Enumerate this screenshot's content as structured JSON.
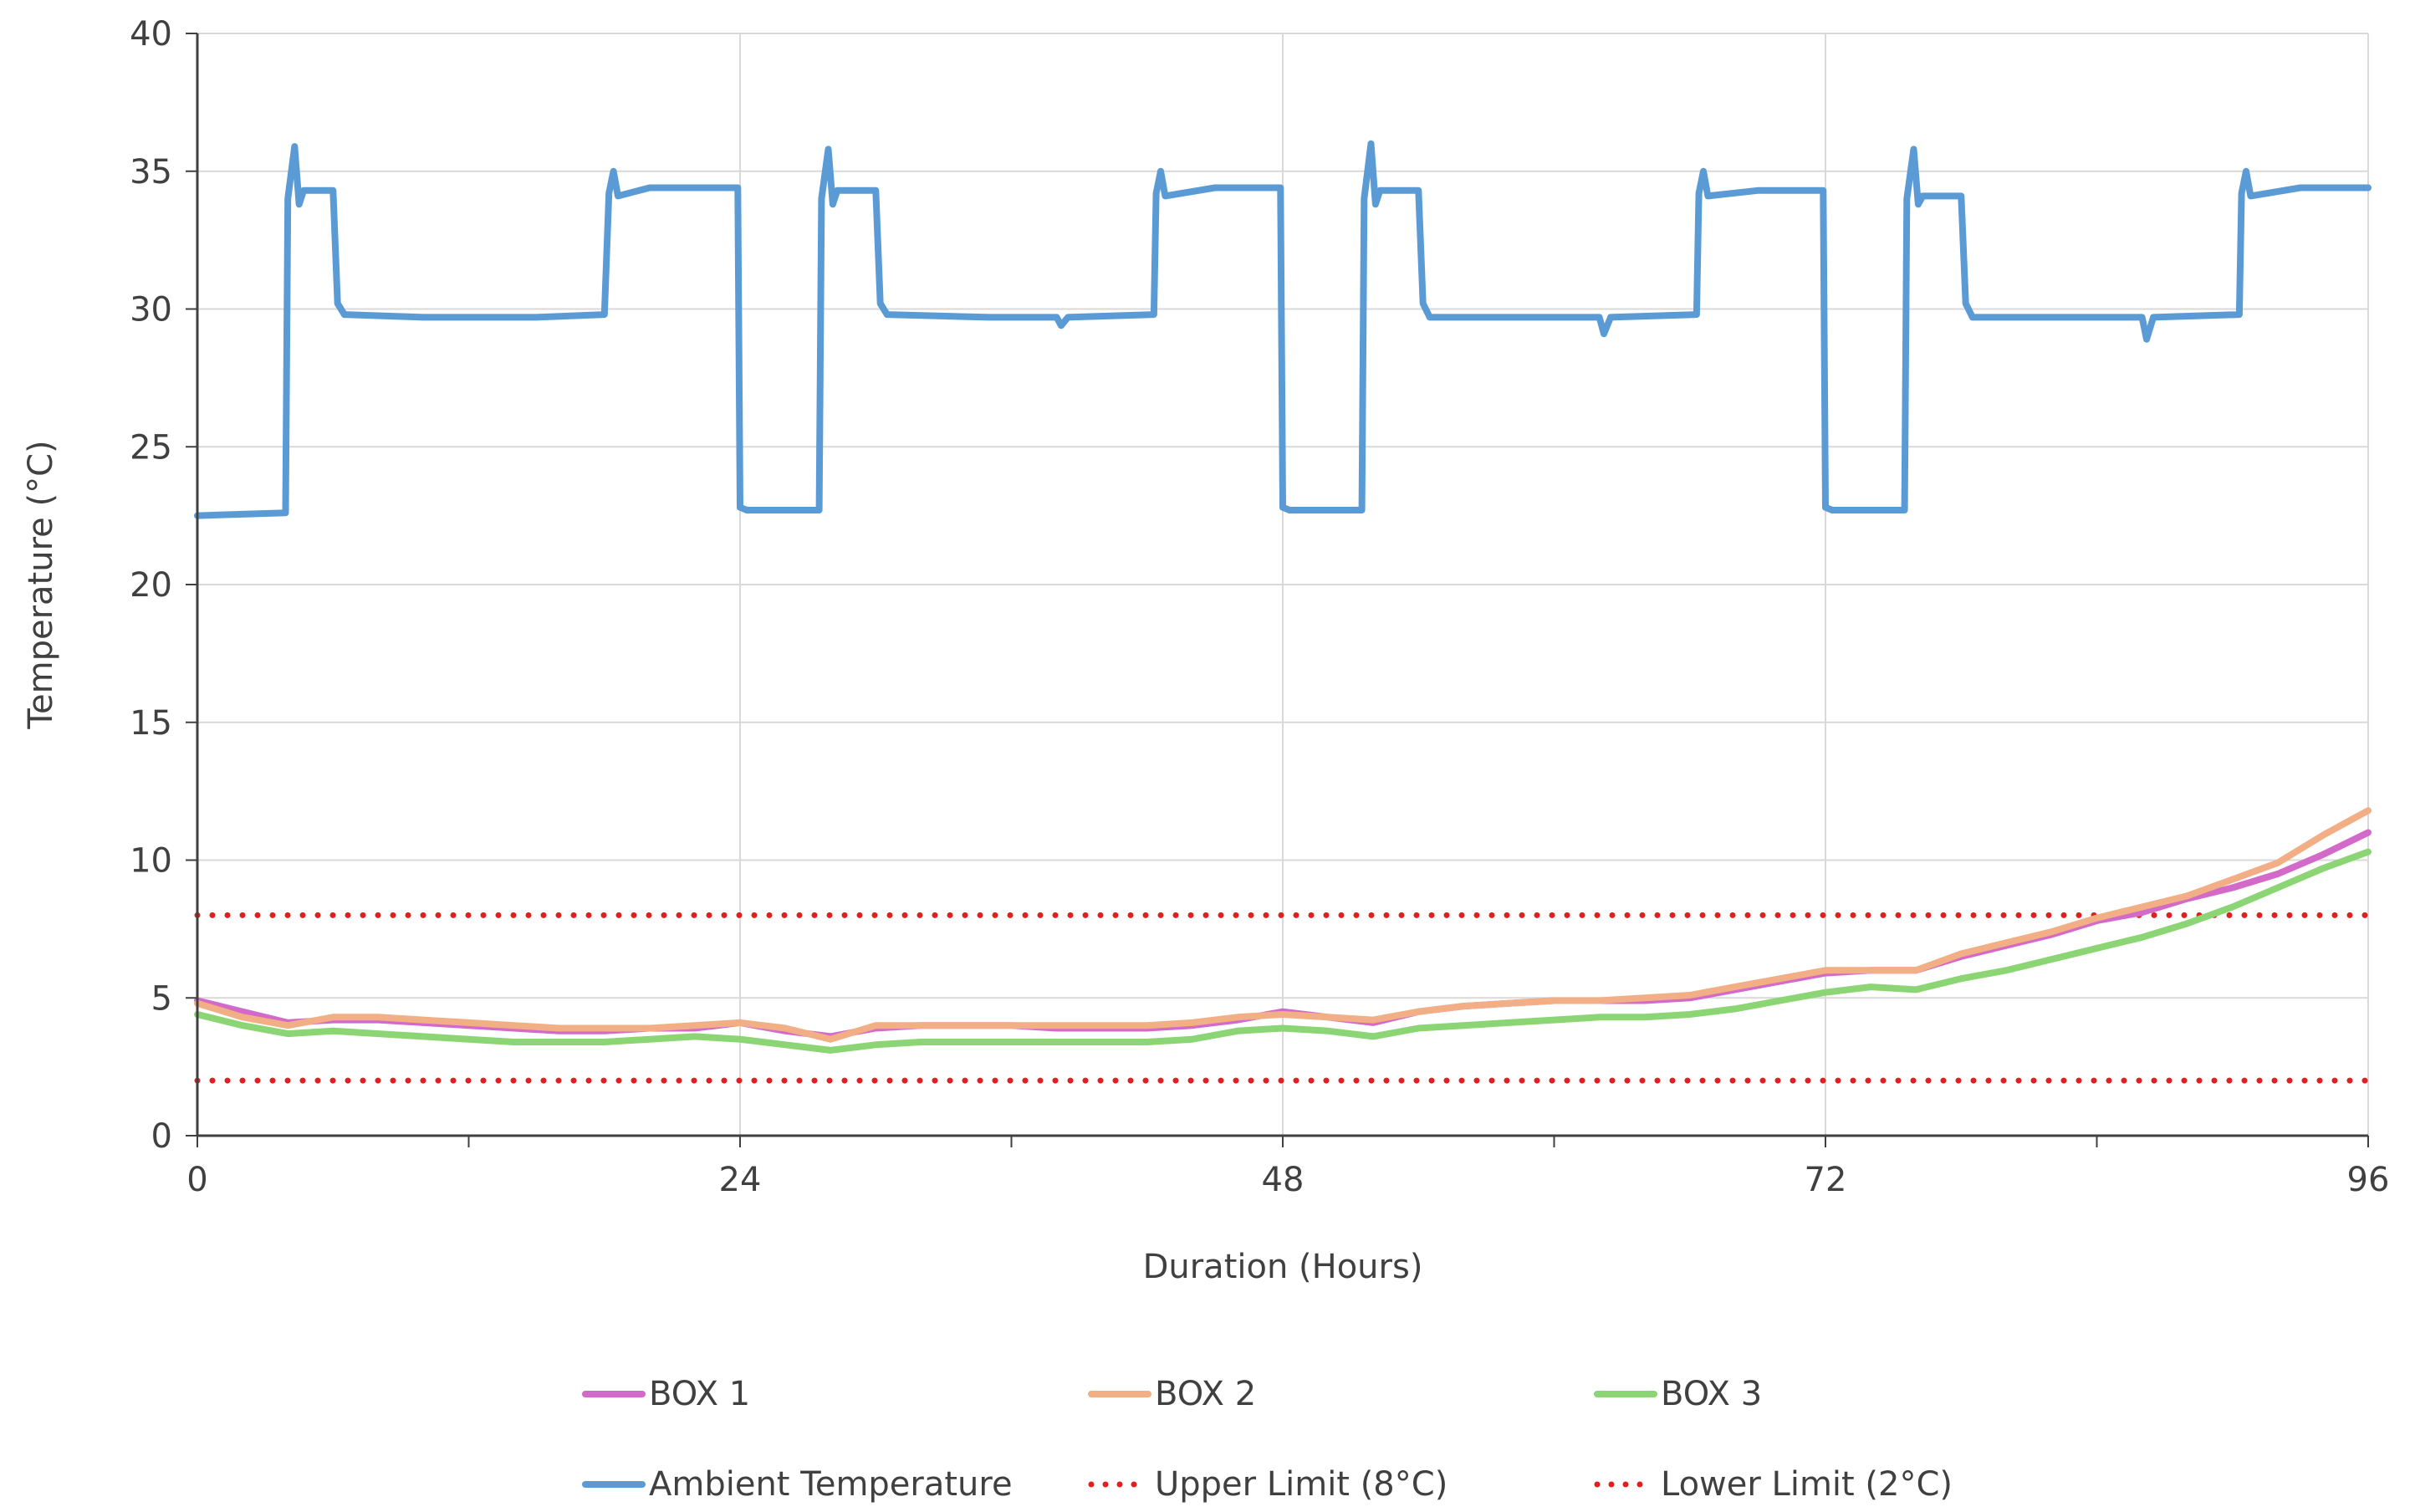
{
  "chart_data": {
    "type": "line",
    "xlabel": "Duration (Hours)",
    "ylabel": "Temperature (°C)",
    "xlim": [
      0,
      96
    ],
    "ylim": [
      0,
      40
    ],
    "x_ticks": [
      "0",
      "24",
      "48",
      "72",
      "96"
    ],
    "y_ticks": [
      "0",
      "5",
      "10",
      "15",
      "20",
      "25",
      "30",
      "35",
      "40"
    ],
    "grid": true,
    "legend_position": "bottom",
    "series": [
      {
        "name": "BOX 1",
        "color": "#D36AC9",
        "style": "solid",
        "x": [
          0,
          2,
          4,
          6,
          8,
          10,
          12,
          14,
          16,
          18,
          20,
          22,
          24,
          26,
          28,
          30,
          32,
          34,
          36,
          38,
          40,
          42,
          44,
          46,
          48,
          50,
          52,
          54,
          56,
          58,
          60,
          62,
          64,
          66,
          68,
          70,
          72,
          74,
          76,
          78,
          80,
          82,
          84,
          86,
          88,
          90,
          92,
          94,
          96
        ],
        "y": [
          4.9,
          4.5,
          4.1,
          4.2,
          4.2,
          4.1,
          4.0,
          3.9,
          3.8,
          3.8,
          3.9,
          3.9,
          4.1,
          3.8,
          3.6,
          3.9,
          4.0,
          4.0,
          4.0,
          3.9,
          3.9,
          3.9,
          4.0,
          4.2,
          4.5,
          4.3,
          4.1,
          4.5,
          4.7,
          4.8,
          4.9,
          4.9,
          4.9,
          5.0,
          5.3,
          5.6,
          5.9,
          6.0,
          6.0,
          6.5,
          6.9,
          7.3,
          7.8,
          8.1,
          8.6,
          9.0,
          9.5,
          10.2,
          11.0
        ]
      },
      {
        "name": "BOX 2",
        "color": "#F2AE84",
        "style": "solid",
        "x": [
          0,
          2,
          4,
          6,
          8,
          10,
          12,
          14,
          16,
          18,
          20,
          22,
          24,
          26,
          28,
          30,
          32,
          34,
          36,
          38,
          40,
          42,
          44,
          46,
          48,
          50,
          52,
          54,
          56,
          58,
          60,
          62,
          64,
          66,
          68,
          70,
          72,
          74,
          76,
          78,
          80,
          82,
          84,
          86,
          88,
          90,
          92,
          94,
          96
        ],
        "y": [
          4.8,
          4.3,
          4.0,
          4.3,
          4.3,
          4.2,
          4.1,
          4.0,
          3.9,
          3.9,
          3.9,
          4.0,
          4.1,
          3.9,
          3.5,
          4.0,
          4.0,
          4.0,
          4.0,
          4.0,
          4.0,
          4.0,
          4.1,
          4.3,
          4.4,
          4.3,
          4.2,
          4.5,
          4.7,
          4.8,
          4.9,
          4.9,
          5.0,
          5.1,
          5.4,
          5.7,
          6.0,
          6.0,
          6.0,
          6.6,
          7.0,
          7.4,
          7.9,
          8.3,
          8.7,
          9.3,
          9.9,
          10.9,
          11.8
        ]
      },
      {
        "name": "BOX 3",
        "color": "#8CD574",
        "style": "solid",
        "x": [
          0,
          2,
          4,
          6,
          8,
          10,
          12,
          14,
          16,
          18,
          20,
          22,
          24,
          26,
          28,
          30,
          32,
          34,
          36,
          38,
          40,
          42,
          44,
          46,
          48,
          50,
          52,
          54,
          56,
          58,
          60,
          62,
          64,
          66,
          68,
          70,
          72,
          74,
          76,
          78,
          80,
          82,
          84,
          86,
          88,
          90,
          92,
          94,
          96
        ],
        "y": [
          4.4,
          4.0,
          3.7,
          3.8,
          3.7,
          3.6,
          3.5,
          3.4,
          3.4,
          3.4,
          3.5,
          3.6,
          3.5,
          3.3,
          3.1,
          3.3,
          3.4,
          3.4,
          3.4,
          3.4,
          3.4,
          3.4,
          3.5,
          3.8,
          3.9,
          3.8,
          3.6,
          3.9,
          4.0,
          4.1,
          4.2,
          4.3,
          4.3,
          4.4,
          4.6,
          4.9,
          5.2,
          5.4,
          5.3,
          5.7,
          6.0,
          6.4,
          6.8,
          7.2,
          7.7,
          8.3,
          9.0,
          9.7,
          10.3
        ]
      },
      {
        "name": "Ambient Temperature",
        "color": "#5B9BD5",
        "style": "solid",
        "x": [
          0,
          3.9,
          4.0,
          4.3,
          4.5,
          4.7,
          6.0,
          6.2,
          6.5,
          10,
          15,
          18.0,
          18.2,
          18.4,
          18.6,
          20,
          23.9,
          24.0,
          24.3,
          27.5,
          27.6,
          27.9,
          28.1,
          28.3,
          30.0,
          30.2,
          30.5,
          35,
          38.0,
          38.2,
          38.5,
          42.3,
          42.4,
          42.6,
          42.8,
          45,
          47.9,
          48.0,
          48.3,
          51.5,
          51.6,
          51.9,
          52.1,
          52.3,
          54.0,
          54.2,
          54.5,
          59,
          62.0,
          62.2,
          62.5,
          66.3,
          66.4,
          66.6,
          66.8,
          69,
          71.9,
          72.0,
          72.3,
          75.5,
          75.6,
          75.9,
          76.1,
          76.3,
          78.0,
          78.2,
          78.5,
          83,
          86.0,
          86.2,
          86.5,
          90.3,
          90.4,
          90.6,
          90.8,
          93,
          96
        ],
        "y": [
          22.5,
          22.6,
          34.0,
          35.9,
          33.8,
          34.3,
          34.3,
          30.2,
          29.8,
          29.7,
          29.7,
          29.8,
          34.2,
          35.0,
          34.1,
          34.4,
          34.4,
          22.8,
          22.7,
          22.7,
          34.0,
          35.8,
          33.8,
          34.3,
          34.3,
          30.2,
          29.8,
          29.7,
          29.7,
          29.4,
          29.7,
          29.8,
          34.2,
          35.0,
          34.1,
          34.4,
          34.4,
          22.8,
          22.7,
          22.7,
          34.0,
          36.0,
          33.8,
          34.3,
          34.3,
          30.2,
          29.7,
          29.7,
          29.7,
          29.1,
          29.7,
          29.8,
          34.2,
          35.0,
          34.1,
          34.3,
          34.3,
          22.8,
          22.7,
          22.7,
          34.0,
          35.8,
          33.8,
          34.1,
          34.1,
          30.2,
          29.7,
          29.7,
          29.7,
          28.9,
          29.7,
          29.8,
          34.2,
          35.0,
          34.1,
          34.4,
          34.4
        ]
      },
      {
        "name": "Upper Limit (8°C)",
        "color": "#E02020",
        "style": "dotted",
        "x": [
          0,
          96
        ],
        "y": [
          8,
          8
        ]
      },
      {
        "name": "Lower Limit (2°C)",
        "color": "#E02020",
        "style": "dotted",
        "x": [
          0,
          96
        ],
        "y": [
          2,
          2
        ]
      }
    ]
  }
}
